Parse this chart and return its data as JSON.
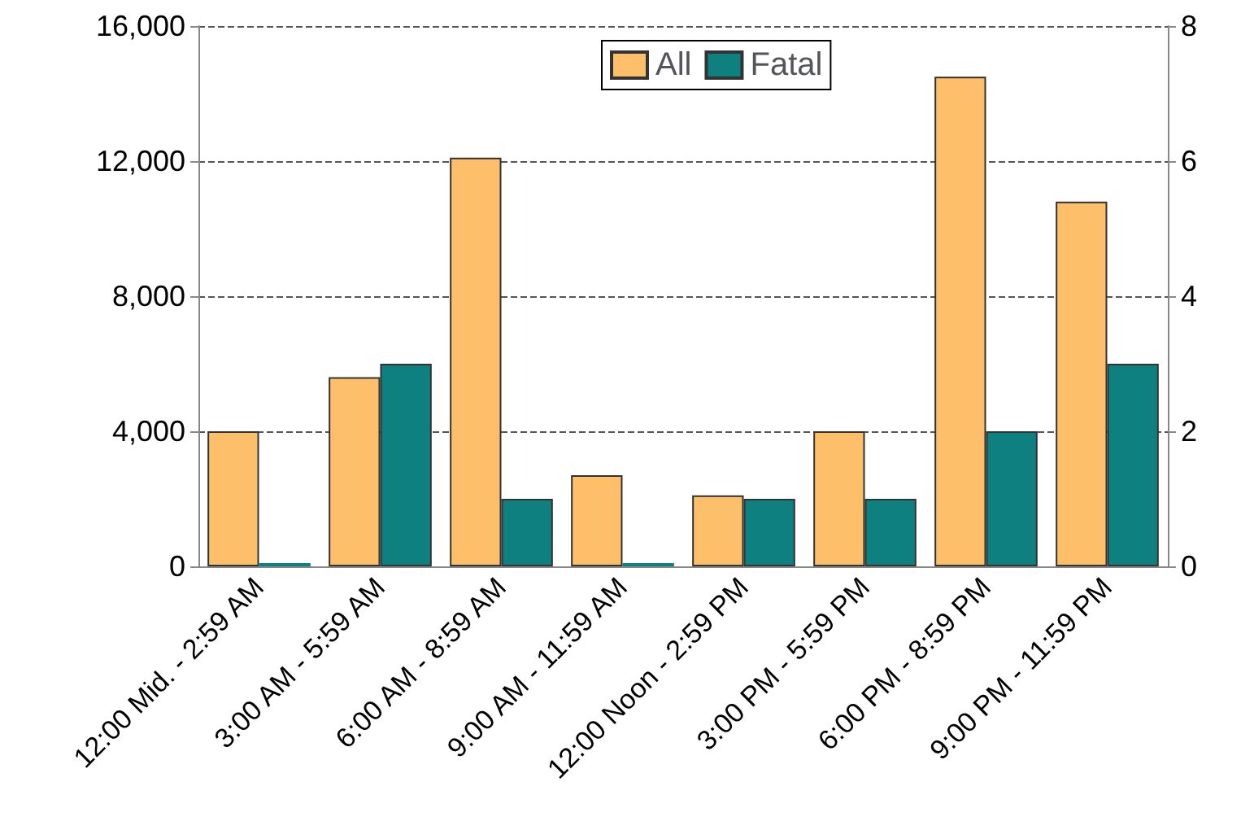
{
  "chart_data": {
    "type": "bar",
    "categories": [
      "12:00 Mid. - 2:59 AM",
      "3:00 AM - 5:59 AM",
      "6:00 AM - 8:59 AM",
      "9:00 AM - 11:59 AM",
      "12:00 Noon - 2:59 PM",
      "3:00 PM - 5:59 PM",
      "6:00 PM - 8:59 PM",
      "9:00 PM - 11:59 PM"
    ],
    "series": [
      {
        "name": "All",
        "color": "#fdbf6a",
        "values": [
          4000,
          5600,
          12100,
          2700,
          2100,
          4000,
          14500,
          10800
        ]
      },
      {
        "name": "Fatal",
        "color": "#0e8080",
        "axis": "y2",
        "values": [
          0,
          3,
          1,
          0,
          1,
          1,
          2,
          3
        ]
      }
    ],
    "ylim": [
      0,
      16000
    ],
    "yticks": [
      {
        "value": 0,
        "label": "0"
      },
      {
        "value": 4000,
        "label": "4,000"
      },
      {
        "value": 8000,
        "label": "8,000"
      },
      {
        "value": 12000,
        "label": "12,000"
      },
      {
        "value": 16000,
        "label": "16,000"
      }
    ],
    "y2lim": [
      0,
      8
    ],
    "y2ticks": [
      0,
      2,
      4,
      6,
      8
    ],
    "grid": "y",
    "legend": "top right"
  }
}
